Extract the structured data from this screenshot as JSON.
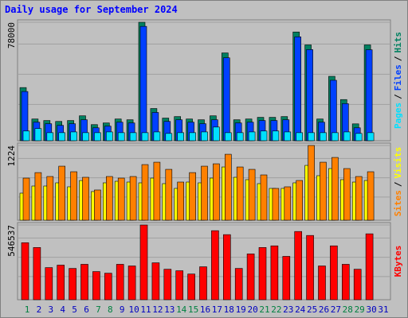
{
  "title": "Daily usage for September 2024",
  "legend_separator": "/",
  "chart_data": [
    {
      "type": "bar",
      "ylim": [
        0,
        78000
      ],
      "yticks": [
        78000
      ],
      "series": [
        {
          "name": "Hits",
          "color": "#008060",
          "values": [
            35000,
            14300,
            13300,
            12700,
            13300,
            16400,
            10600,
            11700,
            14300,
            13800,
            78000,
            21200,
            14900,
            15900,
            14300,
            13800,
            16400,
            57800,
            13800,
            14300,
            15400,
            15400,
            15900,
            71600,
            63100,
            14300,
            42400,
            27100,
            11100,
            63100,
            null
          ]
        },
        {
          "name": "Files",
          "color": "#0040ff",
          "values": [
            32400,
            12200,
            11200,
            10100,
            11200,
            13800,
            8500,
            9600,
            12200,
            11700,
            75300,
            18600,
            12700,
            13800,
            12200,
            11200,
            13800,
            54600,
            11700,
            12200,
            13300,
            13300,
            13800,
            68400,
            60000,
            12200,
            39800,
            24400,
            8500,
            59900,
            null
          ]
        },
        {
          "name": "Pages",
          "color": "#00e0ff",
          "values": [
            6400,
            8000,
            5300,
            5300,
            5800,
            5300,
            5300,
            5800,
            5300,
            5300,
            5300,
            5800,
            4800,
            5300,
            5300,
            5800,
            9000,
            5300,
            5300,
            5800,
            6400,
            6400,
            5800,
            5300,
            5300,
            5300,
            5300,
            5800,
            4800,
            5300,
            null
          ]
        }
      ]
    },
    {
      "type": "bar",
      "ylim": [
        0,
        1224
      ],
      "yticks": [
        1224
      ],
      "series": [
        {
          "name": "Visits",
          "color": "#ffff00",
          "values": [
            443,
            560,
            560,
            612,
            547,
            650,
            469,
            612,
            638,
            625,
            612,
            690,
            599,
            521,
            625,
            612,
            690,
            872,
            703,
            664,
            599,
            521,
            521,
            612,
            898,
            729,
            846,
            664,
            625,
            651,
            null
          ]
        },
        {
          "name": "Sites",
          "color": "#ff8000",
          "values": [
            690,
            780,
            716,
            885,
            794,
            703,
            495,
            716,
            690,
            716,
            911,
            950,
            833,
            625,
            780,
            885,
            924,
            1080,
            872,
            833,
            742,
            521,
            547,
            651,
            1224,
            950,
            1028,
            846,
            716,
            794,
            null
          ]
        }
      ]
    },
    {
      "type": "bar",
      "ylim": [
        0,
        546537
      ],
      "yticks": [
        546537
      ],
      "categories": [
        "1",
        "2",
        "3",
        "4",
        "5",
        "6",
        "7",
        "8",
        "9",
        "10",
        "11",
        "12",
        "13",
        "14",
        "15",
        "16",
        "17",
        "18",
        "19",
        "20",
        "21",
        "22",
        "23",
        "24",
        "25",
        "26",
        "27",
        "28",
        "29",
        "30",
        "31"
      ],
      "category_colors": [
        "#008040",
        "#0000c0",
        "#0000c0",
        "#0000c0",
        "#0000c0",
        "#0000c0",
        "#008040",
        "#008040",
        "#0000c0",
        "#0000c0",
        "#0000c0",
        "#0000c0",
        "#0000c0",
        "#008040",
        "#008040",
        "#0000c0",
        "#0000c0",
        "#0000c0",
        "#0000c0",
        "#0000c0",
        "#008040",
        "#008040",
        "#0000c0",
        "#0000c0",
        "#0000c0",
        "#0000c0",
        "#0000c0",
        "#008040",
        "#008040",
        "#0000c0",
        "#0000c0"
      ],
      "series": [
        {
          "name": "KBytes",
          "color": "#ff0000",
          "values": [
            417000,
            382000,
            235000,
            253000,
            229000,
            259000,
            206000,
            194000,
            259000,
            247000,
            546537,
            270000,
            223000,
            212000,
            188000,
            241000,
            505000,
            476000,
            229000,
            335000,
            382000,
            394000,
            317000,
            499000,
            470000,
            247000,
            394000,
            259000,
            223000,
            482000,
            null
          ]
        }
      ]
    }
  ]
}
